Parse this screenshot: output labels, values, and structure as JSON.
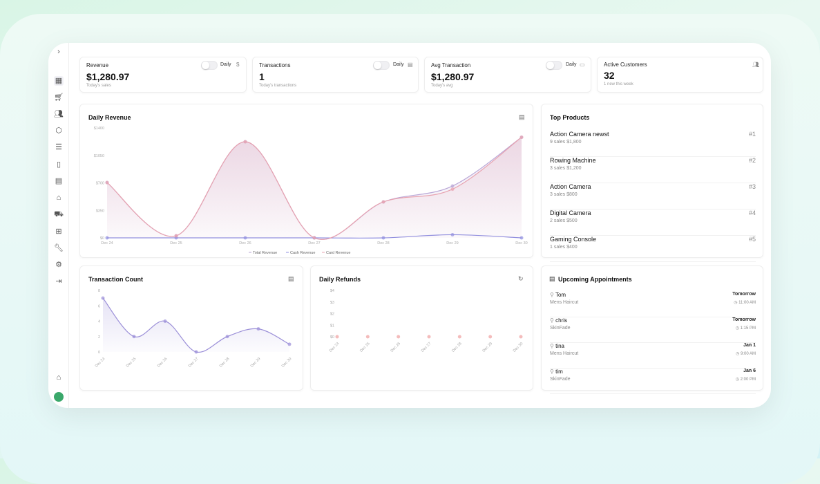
{
  "stats": [
    {
      "label": "Revenue",
      "value": "$1,280.97",
      "sub": "Today's sales",
      "toggle": "Daily",
      "icon": "dollar-icon"
    },
    {
      "label": "Transactions",
      "value": "1",
      "sub": "Today's transactions",
      "toggle": "Daily",
      "icon": "receipt-icon"
    },
    {
      "label": "Avg Transaction",
      "value": "$1,280.97",
      "sub": "Today's avg",
      "toggle": "Daily",
      "icon": "credit-card-icon"
    },
    {
      "label": "Active Customers",
      "value": "32",
      "sub": "1 new this week",
      "icon": "users-icon"
    }
  ],
  "top_products": {
    "title": "Top Products",
    "items": [
      {
        "name": "Action Camera newst",
        "meta": "9 sales   $1,800",
        "rank": "#1"
      },
      {
        "name": "Rowing Machine",
        "meta": "3 sales   $1,200",
        "rank": "#2"
      },
      {
        "name": "Action Camera",
        "meta": "3 sales   $800",
        "rank": "#3"
      },
      {
        "name": "Digital Camera",
        "meta": "2 sales   $500",
        "rank": "#4"
      },
      {
        "name": "Gaming Console",
        "meta": "1 sales   $400",
        "rank": "#5"
      }
    ]
  },
  "appointments": {
    "title": "Upcoming Appointments",
    "items": [
      {
        "name": "Tom",
        "service": "Mens Haircut",
        "date": "Tomorrow",
        "time": "11:00 AM"
      },
      {
        "name": "chris",
        "service": "SkinFade",
        "date": "Tomorrow",
        "time": "1:15 PM"
      },
      {
        "name": "tina",
        "service": "Mens Haircut",
        "date": "Jan 1",
        "time": "9:00 AM"
      },
      {
        "name": "tim",
        "service": "SkinFade",
        "date": "Jan 6",
        "time": "2:00 PM"
      }
    ]
  },
  "colors": {
    "total": "#b9a6d6",
    "cash": "#8f8fe0",
    "card": "#e8a3b0",
    "count": "#9b8fd8",
    "refund": "#f0a0a0"
  },
  "chart_data": [
    {
      "type": "area",
      "title": "Daily Revenue",
      "categories": [
        "Dec 24",
        "Dec 25",
        "Dec 26",
        "Dec 27",
        "Dec 28",
        "Dec 29",
        "Dec 30"
      ],
      "yticks": [
        "$0",
        "$350",
        "$700",
        "$1050",
        "$1400"
      ],
      "ylim": [
        0,
        1400
      ],
      "legend": "bottom",
      "series": [
        {
          "name": "Total Revenue",
          "values": [
            704,
            26,
            1224,
            0,
            458,
            660,
            1281
          ]
        },
        {
          "name": "Cash Revenue",
          "values": [
            0,
            0,
            0,
            0,
            0,
            40,
            0
          ]
        },
        {
          "name": "Card Revenue",
          "values": [
            704,
            26,
            1224,
            0,
            458,
            620,
            1281
          ]
        }
      ]
    },
    {
      "type": "area",
      "title": "Transaction Count",
      "categories": [
        "Dec 24",
        "Dec 25",
        "Dec 26",
        "Dec 27",
        "Dec 28",
        "Dec 29",
        "Dec 30"
      ],
      "yticks": [
        "0",
        "2",
        "4",
        "6",
        "8"
      ],
      "ylim": [
        0,
        8
      ],
      "values": [
        7,
        2,
        4,
        0,
        2,
        3,
        1
      ]
    },
    {
      "type": "line",
      "title": "Daily Refunds",
      "categories": [
        "Dec 24",
        "Dec 25",
        "Dec 26",
        "Dec 27",
        "Dec 28",
        "Dec 29",
        "Dec 30"
      ],
      "yticks": [
        "$0",
        "$1",
        "$2",
        "$3",
        "$4"
      ],
      "ylim": [
        0,
        4
      ],
      "values": [
        0,
        0,
        0,
        0,
        0,
        0,
        0
      ]
    }
  ]
}
